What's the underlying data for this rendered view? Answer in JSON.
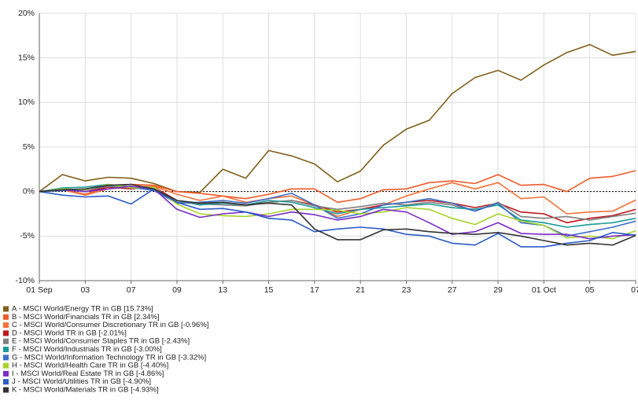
{
  "chart_data": {
    "type": "line",
    "categories": [
      "01 Sep",
      null,
      "03",
      null,
      "07",
      null,
      "09",
      null,
      "13",
      null,
      "15",
      null,
      "17",
      null,
      "21",
      null,
      "23",
      null,
      "27",
      null,
      "29",
      null,
      "01 Oct",
      null,
      "05",
      null,
      "07"
    ],
    "ylim": [
      -10,
      20
    ],
    "yticks": [
      {
        "value": -10,
        "label": "-10%"
      },
      {
        "value": -5,
        "label": "-5%"
      },
      {
        "value": 0,
        "label": "0%"
      },
      {
        "value": 5,
        "label": "5%"
      },
      {
        "value": 10,
        "label": "10%"
      },
      {
        "value": 15,
        "label": "15%"
      },
      {
        "value": 20,
        "label": "20%"
      }
    ],
    "grid": true,
    "series": [
      {
        "name": "A - MSCI World/Energy TR in GB [15.73%]",
        "color": "#7f5f1a",
        "values": [
          0,
          1.9,
          1.2,
          1.6,
          1.5,
          0.9,
          0,
          -0.1,
          2.5,
          1.5,
          4.6,
          4.0,
          3.1,
          1.1,
          2.3,
          5.2,
          7.0,
          8.0,
          11.0,
          12.8,
          13.6,
          12.5,
          14.2,
          15.6,
          16.5,
          15.3,
          15.73
        ]
      },
      {
        "name": "B - MSCI World/Financials TR in GB [2.34%]",
        "color": "#ef5b2a",
        "values": [
          0,
          0.2,
          -0.3,
          0.5,
          0.8,
          0.7,
          0,
          -0.2,
          -0.5,
          -0.8,
          -0.3,
          0.3,
          0.3,
          -1.2,
          -0.8,
          0.2,
          0.3,
          1.0,
          1.2,
          0.9,
          1.9,
          0.7,
          0.8,
          0,
          1.5,
          1.7,
          2.34
        ]
      },
      {
        "name": "C - MSCI World/Consumer Discretionary TR in GB [-0.96%]",
        "color": "#f4723a",
        "values": [
          0,
          0.2,
          -0.4,
          0.3,
          0.5,
          0.6,
          -0.3,
          -1.0,
          -0.5,
          -1.2,
          -0.8,
          -0.5,
          -1.5,
          -2.8,
          -2.0,
          -1.5,
          -0.5,
          0.3,
          1.0,
          0.3,
          1.0,
          -0.8,
          -0.6,
          -2.5,
          -2.3,
          -2.2,
          -0.96
        ]
      },
      {
        "name": "D - MSCI World TR in GB [-2.01%]",
        "color": "#c0161c",
        "values": [
          0,
          0.3,
          0,
          0.5,
          0.3,
          0.5,
          -1.0,
          -1.5,
          -1.2,
          -1.5,
          -1.2,
          -1.0,
          -1.5,
          -2.3,
          -2.0,
          -1.5,
          -1.2,
          -1.0,
          -1.3,
          -1.8,
          -1.3,
          -2.3,
          -2.5,
          -3.5,
          -3.0,
          -2.7,
          -2.01
        ]
      },
      {
        "name": "E - MSCI World/Consumer Staples TR in GB [-2.43%]",
        "color": "#808080",
        "values": [
          0,
          0.3,
          0.2,
          0.6,
          0.4,
          0.2,
          -1.2,
          -1.4,
          -1.5,
          -1.6,
          -1.2,
          -1.0,
          -1.6,
          -2.0,
          -1.7,
          -1.3,
          -1.5,
          -1.2,
          -1.5,
          -2.2,
          -1.2,
          -2.8,
          -3.0,
          -2.8,
          -3.2,
          -2.8,
          -2.43
        ]
      },
      {
        "name": "F - MSCI World/Industrials TR in GB [-3.00%]",
        "color": "#1a9a9a",
        "values": [
          0,
          0.4,
          0.5,
          0.8,
          0.5,
          0.2,
          -1.0,
          -1.5,
          -1.3,
          -1.5,
          -1.0,
          -1.2,
          -1.8,
          -2.5,
          -2.0,
          -1.8,
          -1.6,
          -1.4,
          -1.8,
          -2.0,
          -1.5,
          -3.2,
          -3.5,
          -4.0,
          -3.7,
          -3.5,
          -3.0
        ]
      },
      {
        "name": "G - MSCI World/Information Technology TR in GB [-3.32%]",
        "color": "#3d6ec9",
        "values": [
          0,
          0.1,
          0.2,
          0.7,
          0.5,
          0.1,
          -1.3,
          -1.2,
          -1.0,
          -1.3,
          -0.8,
          -0.2,
          -1.5,
          -3.0,
          -2.5,
          -1.5,
          -1.2,
          -0.8,
          -1.3,
          -2.2,
          -1.3,
          -3.5,
          -3.8,
          -5.0,
          -4.5,
          -4.0,
          -3.32
        ]
      },
      {
        "name": "H - MSCI World/Health Care TR in GB [-4.40%]",
        "color": "#a6d42a",
        "values": [
          0,
          0.3,
          0.2,
          0.8,
          0.4,
          0.5,
          -1.4,
          -2.5,
          -2.7,
          -2.8,
          -2.5,
          -2.0,
          -2.0,
          -2.1,
          -2.5,
          -2.3,
          -1.8,
          -2.0,
          -3.0,
          -3.7,
          -2.5,
          -3.3,
          -3.8,
          -5.2,
          -5.0,
          -5.3,
          -4.4
        ]
      },
      {
        "name": "I - MSCI World/Real Estate TR in GB [-4.86%]",
        "color": "#7a2bc7",
        "values": [
          0,
          0.2,
          0,
          0.3,
          0.6,
          0.3,
          -2.0,
          -2.9,
          -2.5,
          -2.3,
          -2.8,
          -2.3,
          -2.6,
          -3.2,
          -2.8,
          -2.0,
          -2.3,
          -3.5,
          -4.8,
          -4.5,
          -3.5,
          -4.7,
          -4.8,
          -4.8,
          -5.3,
          -5.0,
          -4.86
        ]
      },
      {
        "name": "J - MSCI World/Utilities TR in GB [-4.90%]",
        "color": "#2a5bc8",
        "values": [
          0,
          -0.4,
          -0.6,
          -0.5,
          -1.4,
          0.3,
          -1.2,
          -2.0,
          -1.9,
          -2.3,
          -3.0,
          -3.2,
          -4.5,
          -4.2,
          -4.0,
          -4.2,
          -4.8,
          -5.0,
          -5.8,
          -6.0,
          -4.7,
          -6.2,
          -6.2,
          -5.8,
          -5.5,
          -4.6,
          -4.9
        ]
      },
      {
        "name": "K - MSCI World/Materials TR in GB [-4.93%]",
        "color": "#333333",
        "values": [
          0,
          0.2,
          0.3,
          0.7,
          0.8,
          0.3,
          -1.0,
          -1.3,
          -1.2,
          -1.5,
          -1.3,
          -1.5,
          -4.2,
          -5.4,
          -5.4,
          -4.3,
          -4.2,
          -4.5,
          -4.7,
          -4.8,
          -4.6,
          -5.0,
          -5.5,
          -6.0,
          -5.8,
          -6.0,
          -4.93
        ]
      }
    ]
  }
}
